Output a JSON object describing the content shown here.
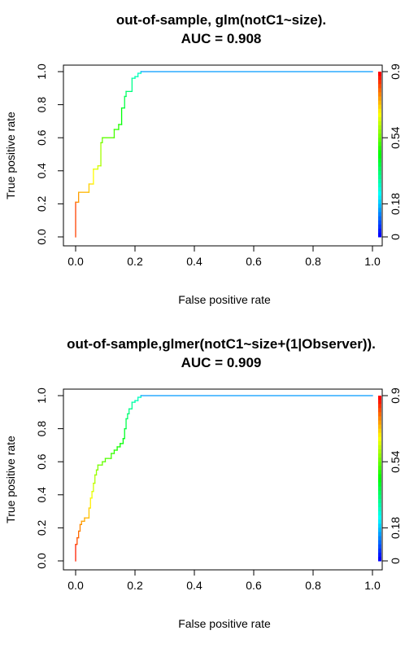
{
  "chart_data": [
    {
      "type": "line",
      "subtype": "roc-step",
      "title": "out-of-sample, glm(notC1~size).",
      "subtitle": "AUC =  0.908",
      "xlabel": "False positive rate",
      "ylabel": "True positive rate",
      "xlim": [
        0,
        1
      ],
      "ylim": [
        0,
        1
      ],
      "x_ticks": [
        "0.0",
        "0.2",
        "0.4",
        "0.6",
        "0.8",
        "1.0"
      ],
      "y_ticks": [
        "0.0",
        "0.2",
        "0.4",
        "0.6",
        "0.8",
        "1.0"
      ],
      "colorbar_ticks": [
        "0",
        "0.18",
        "0.54",
        "0.9"
      ],
      "colorbar_range": [
        0,
        0.9
      ],
      "grid": false,
      "series": [
        {
          "x": [
            0,
            0,
            0.01,
            0.01,
            0.045,
            0.045,
            0.06,
            0.06,
            0.075,
            0.075,
            0.085,
            0.085,
            0.09,
            0.09,
            0.13,
            0.13,
            0.145,
            0.145,
            0.155,
            0.155,
            0.165,
            0.165,
            0.17,
            0.17,
            0.19,
            0.19,
            0.2,
            0.2,
            0.21,
            0.21,
            0.22,
            0.22,
            1.0
          ],
          "y": [
            0,
            0.21,
            0.21,
            0.27,
            0.27,
            0.32,
            0.32,
            0.41,
            0.41,
            0.43,
            0.43,
            0.57,
            0.57,
            0.6,
            0.6,
            0.65,
            0.65,
            0.68,
            0.68,
            0.78,
            0.78,
            0.85,
            0.85,
            0.88,
            0.88,
            0.96,
            0.96,
            0.97,
            0.97,
            0.99,
            0.99,
            1.0,
            1.0
          ]
        }
      ]
    },
    {
      "type": "line",
      "subtype": "roc-step",
      "title": "out-of-sample,glmer(notC1~size+(1|Observer)).",
      "subtitle": "AUC =  0.909",
      "xlabel": "False positive rate",
      "ylabel": "True positive rate",
      "xlim": [
        0,
        1
      ],
      "ylim": [
        0,
        1
      ],
      "x_ticks": [
        "0.0",
        "0.2",
        "0.4",
        "0.6",
        "0.8",
        "1.0"
      ],
      "y_ticks": [
        "0.0",
        "0.2",
        "0.4",
        "0.6",
        "0.8",
        "1.0"
      ],
      "colorbar_ticks": [
        "0",
        "0.18",
        "0.54",
        "0.9"
      ],
      "colorbar_range": [
        0,
        0.9
      ],
      "grid": false,
      "series": [
        {
          "x": [
            0,
            0,
            0.005,
            0.005,
            0.01,
            0.01,
            0.015,
            0.015,
            0.02,
            0.02,
            0.03,
            0.03,
            0.045,
            0.045,
            0.05,
            0.05,
            0.055,
            0.055,
            0.06,
            0.06,
            0.065,
            0.065,
            0.07,
            0.07,
            0.075,
            0.075,
            0.09,
            0.09,
            0.1,
            0.1,
            0.12,
            0.12,
            0.13,
            0.13,
            0.14,
            0.14,
            0.15,
            0.15,
            0.16,
            0.16,
            0.165,
            0.165,
            0.17,
            0.17,
            0.175,
            0.175,
            0.18,
            0.18,
            0.19,
            0.19,
            0.2,
            0.2,
            0.21,
            0.21,
            0.22,
            0.22,
            1.0
          ],
          "y": [
            0,
            0.1,
            0.1,
            0.14,
            0.14,
            0.18,
            0.18,
            0.22,
            0.22,
            0.24,
            0.24,
            0.26,
            0.26,
            0.32,
            0.32,
            0.38,
            0.38,
            0.42,
            0.42,
            0.47,
            0.47,
            0.52,
            0.52,
            0.55,
            0.55,
            0.58,
            0.58,
            0.6,
            0.6,
            0.62,
            0.62,
            0.65,
            0.65,
            0.67,
            0.67,
            0.69,
            0.69,
            0.71,
            0.71,
            0.74,
            0.74,
            0.8,
            0.8,
            0.86,
            0.86,
            0.89,
            0.89,
            0.92,
            0.92,
            0.96,
            0.96,
            0.97,
            0.97,
            0.99,
            0.99,
            1.0,
            1.0
          ]
        }
      ]
    }
  ]
}
